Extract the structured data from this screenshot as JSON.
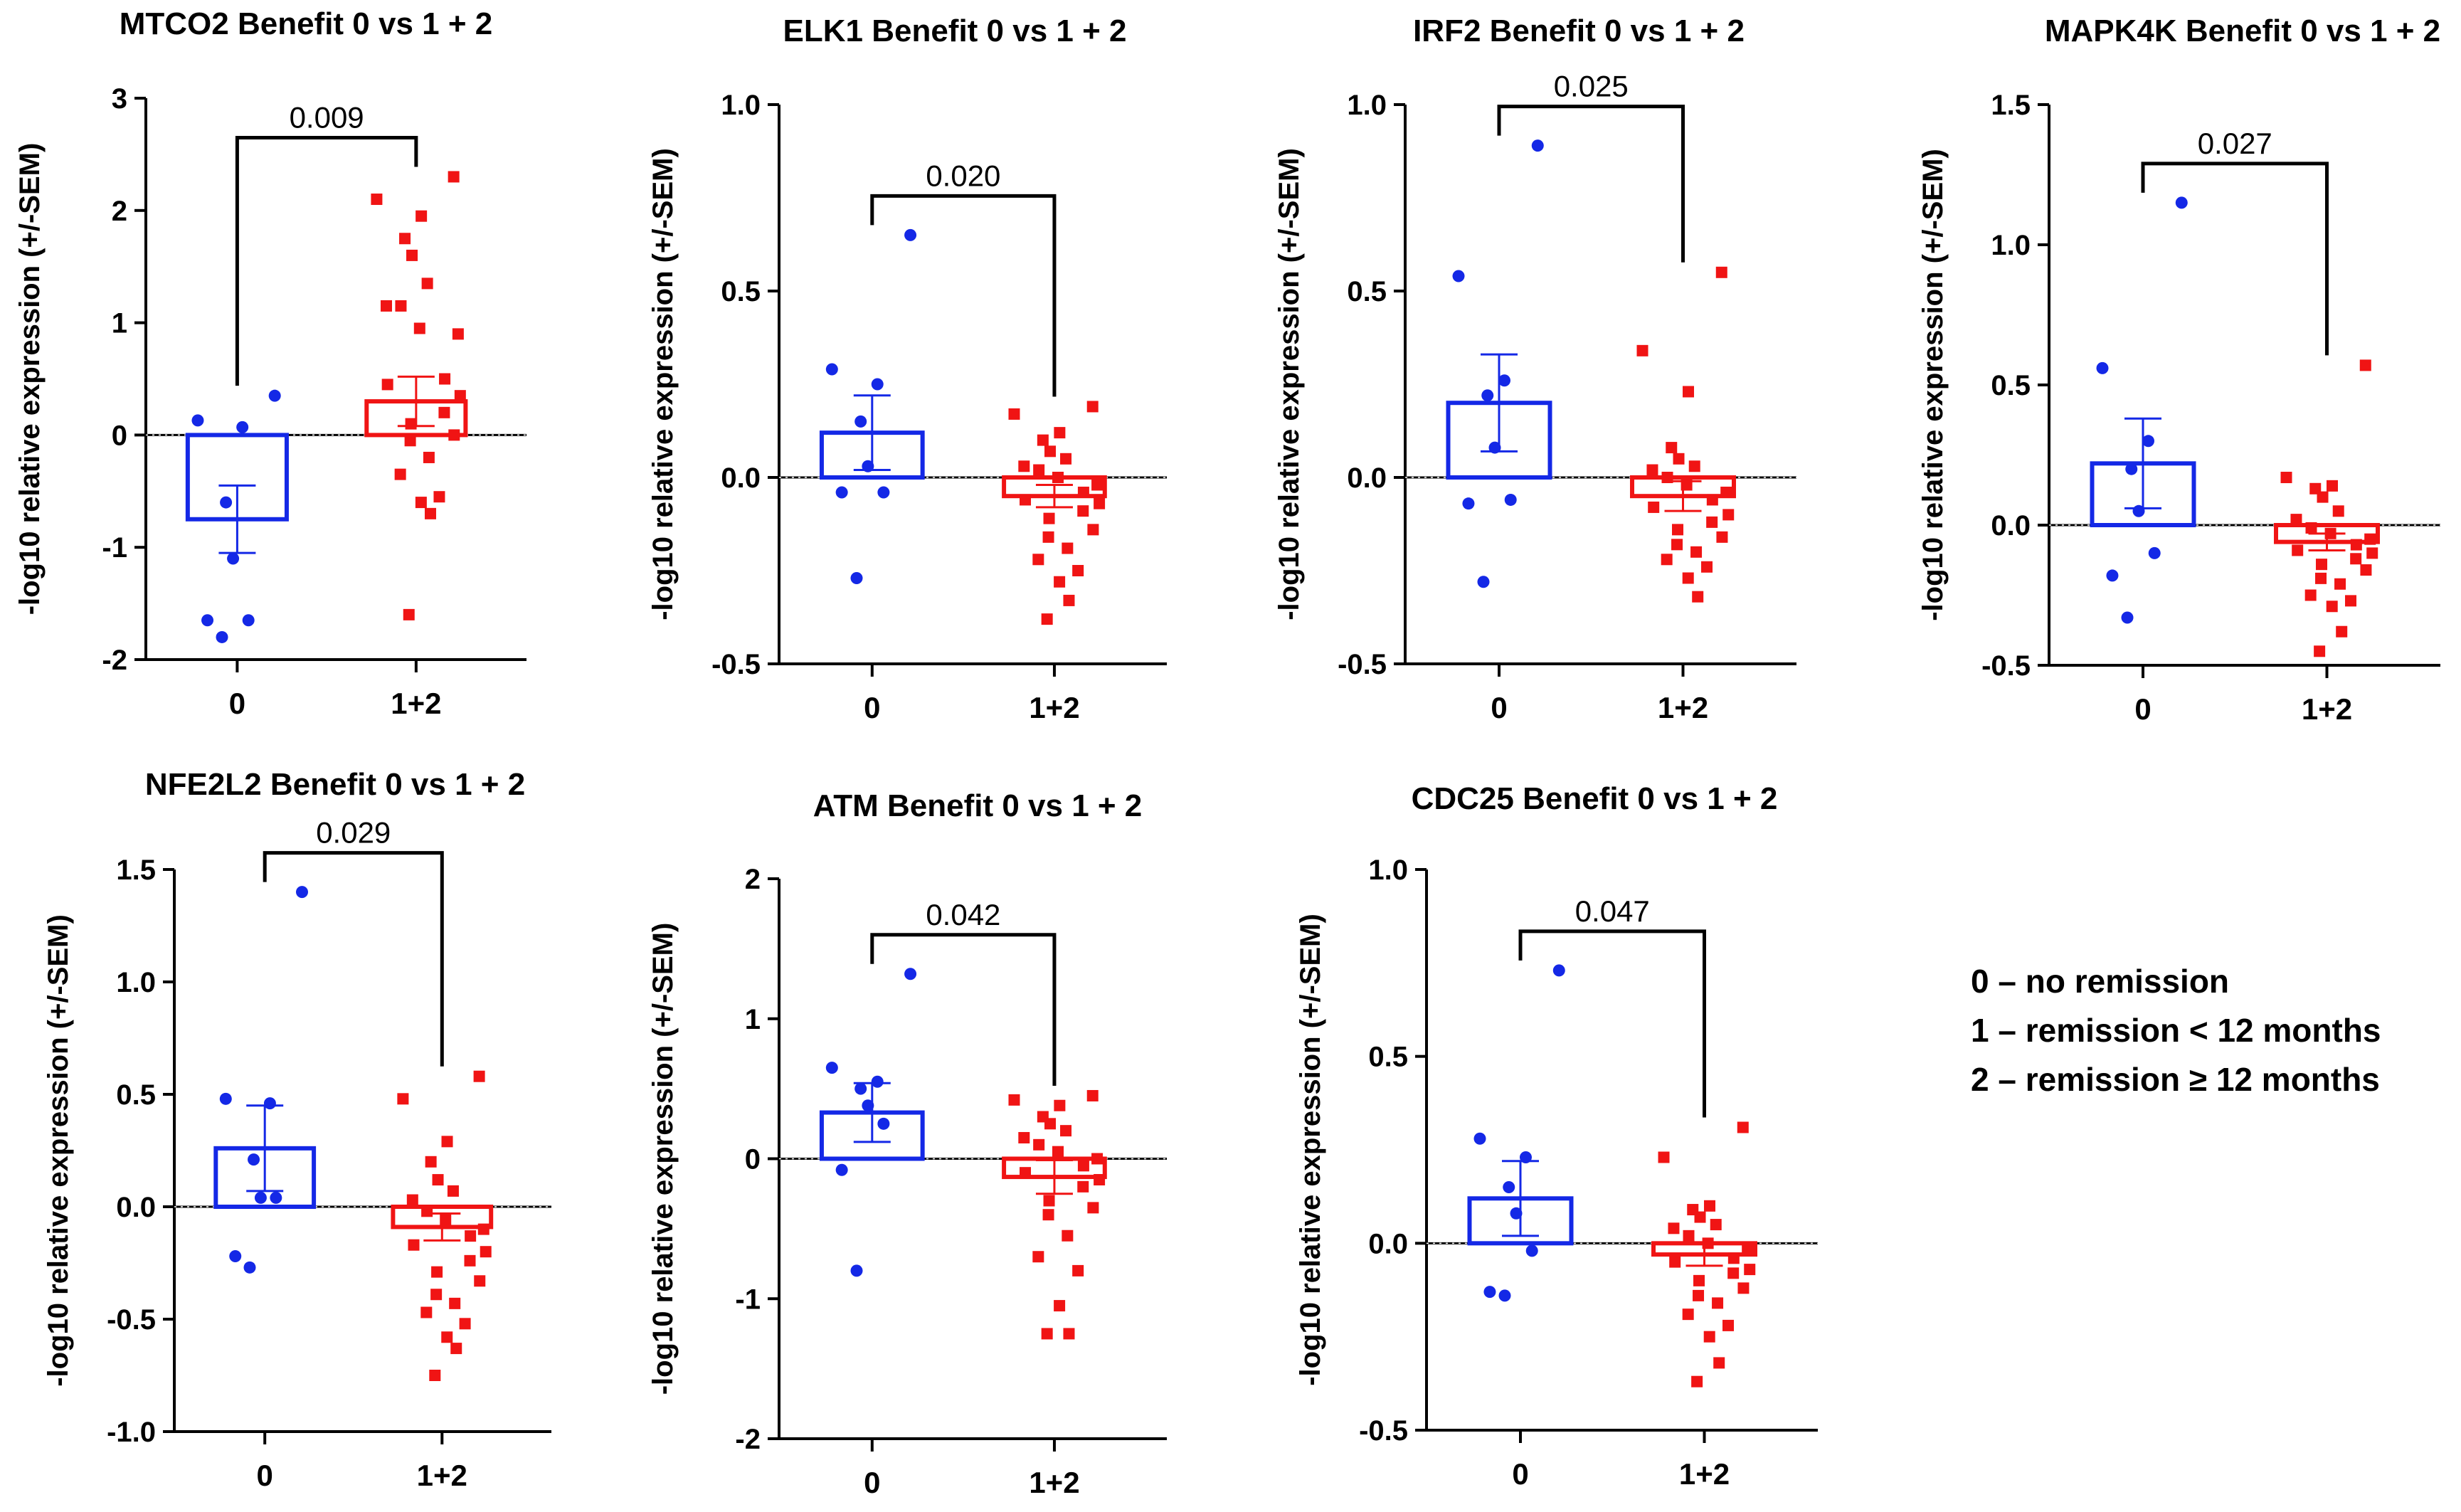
{
  "colors": {
    "group0": "#1428e6",
    "group12": "#f01414",
    "axis": "#000000"
  },
  "legend": {
    "items": [
      "0 – no remission",
      "1 – remission < 12 months",
      "2 – remission ≥ 12 months"
    ]
  },
  "chart_data": [
    {
      "type": "scatter",
      "title": "MTCO2 Benefit 0 vs 1 + 2",
      "ylabel": "-log10 relative expression (+/-SEM)",
      "categories": [
        "0",
        "1+2"
      ],
      "ylim": [
        -2,
        3
      ],
      "yticks": [
        -2,
        -1,
        0,
        1,
        2,
        3
      ],
      "ytick_labels": [
        "-2",
        "-1",
        "0",
        "1",
        "2",
        "3"
      ],
      "p_value": "0.009",
      "series": [
        {
          "name": "0",
          "mean": -0.75,
          "sem": 0.3,
          "points": [
            0.35,
            0.13,
            0.07,
            -0.6,
            -1.1,
            -1.65,
            -1.65,
            -1.8
          ]
        },
        {
          "name": "1+2",
          "mean": 0.3,
          "sem": 0.22,
          "points": [
            2.3,
            2.1,
            1.95,
            1.75,
            1.6,
            1.35,
            1.15,
            1.15,
            0.95,
            0.9,
            0.5,
            0.45,
            0.35,
            0.2,
            0.1,
            0.0,
            -0.05,
            -0.2,
            -0.35,
            -0.55,
            -0.6,
            -0.7,
            -1.6
          ]
        }
      ]
    },
    {
      "type": "scatter",
      "title": "ELK1 Benefit 0 vs 1 + 2",
      "ylabel": "-log10 relative expression (+/-SEM)",
      "categories": [
        "0",
        "1+2"
      ],
      "ylim": [
        -0.5,
        1.0
      ],
      "yticks": [
        -0.5,
        0,
        0.5,
        1.0
      ],
      "ytick_labels": [
        "-0.5",
        "0.0",
        "0.5",
        "1.0"
      ],
      "p_value": "0.020",
      "series": [
        {
          "name": "0",
          "mean": 0.12,
          "sem": 0.1,
          "points": [
            0.65,
            0.29,
            0.25,
            0.15,
            0.03,
            -0.04,
            -0.04,
            -0.27
          ]
        },
        {
          "name": "1+2",
          "mean": -0.05,
          "sem": 0.03,
          "points": [
            0.19,
            0.17,
            0.12,
            0.1,
            0.07,
            0.05,
            0.03,
            0.02,
            0.0,
            -0.02,
            -0.04,
            -0.06,
            -0.07,
            -0.09,
            -0.11,
            -0.14,
            -0.16,
            -0.19,
            -0.22,
            -0.25,
            -0.28,
            -0.33,
            -0.38
          ]
        }
      ]
    },
    {
      "type": "scatter",
      "title": "IRF2 Benefit 0 vs 1 + 2",
      "ylabel": "-log10 relative expression (+/-SEM)",
      "categories": [
        "0",
        "1+2"
      ],
      "ylim": [
        -0.5,
        1.0
      ],
      "yticks": [
        -0.5,
        0,
        0.5,
        1.0
      ],
      "ytick_labels": [
        "-0.5",
        "0.0",
        "0.5",
        "1.0"
      ],
      "p_value": "0.025",
      "series": [
        {
          "name": "0",
          "mean": 0.2,
          "sem": 0.13,
          "points": [
            0.89,
            0.54,
            0.26,
            0.22,
            0.08,
            -0.06,
            -0.07,
            -0.28
          ]
        },
        {
          "name": "1+2",
          "mean": -0.05,
          "sem": 0.04,
          "points": [
            0.55,
            0.34,
            0.23,
            0.08,
            0.05,
            0.03,
            0.02,
            0.0,
            -0.02,
            -0.04,
            -0.06,
            -0.08,
            -0.1,
            -0.12,
            -0.14,
            -0.16,
            -0.18,
            -0.2,
            -0.22,
            -0.24,
            -0.27,
            -0.32
          ]
        }
      ]
    },
    {
      "type": "scatter",
      "title": "MAPK4K Benefit 0 vs 1 + 2",
      "ylabel": "-log10 relative expression (+/-SEM)",
      "categories": [
        "0",
        "1+2"
      ],
      "ylim": [
        -0.5,
        1.5
      ],
      "yticks": [
        -0.5,
        0,
        0.5,
        1.0,
        1.5
      ],
      "ytick_labels": [
        "-0.5",
        "0.0",
        "0.5",
        "1.0",
        "1.5"
      ],
      "p_value": "0.027",
      "series": [
        {
          "name": "0",
          "mean": 0.22,
          "sem": 0.16,
          "points": [
            1.15,
            0.56,
            0.3,
            0.2,
            0.05,
            -0.1,
            -0.18,
            -0.33
          ]
        },
        {
          "name": "1+2",
          "mean": -0.06,
          "sem": 0.03,
          "points": [
            0.57,
            0.17,
            0.14,
            0.13,
            0.1,
            0.05,
            0.02,
            -0.01,
            -0.03,
            -0.05,
            -0.07,
            -0.09,
            -0.1,
            -0.12,
            -0.14,
            -0.16,
            -0.19,
            -0.21,
            -0.25,
            -0.27,
            -0.29,
            -0.38,
            -0.45
          ]
        }
      ]
    },
    {
      "type": "scatter",
      "title": "NFE2L2 Benefit 0 vs 1 + 2",
      "ylabel": "-log10 relative expression (+/-SEM)",
      "categories": [
        "0",
        "1+2"
      ],
      "ylim": [
        -1.0,
        1.5
      ],
      "yticks": [
        -1.0,
        -0.5,
        0,
        0.5,
        1.0,
        1.5
      ],
      "ytick_labels": [
        "-1.0",
        "-0.5",
        "0.0",
        "0.5",
        "1.0",
        "1.5"
      ],
      "p_value": "0.029",
      "series": [
        {
          "name": "0",
          "mean": 0.26,
          "sem": 0.19,
          "points": [
            1.4,
            0.48,
            0.46,
            0.21,
            0.04,
            0.04,
            -0.22,
            -0.27
          ]
        },
        {
          "name": "1+2",
          "mean": -0.09,
          "sem": 0.06,
          "points": [
            0.58,
            0.48,
            0.29,
            0.2,
            0.12,
            0.07,
            0.03,
            -0.02,
            -0.06,
            -0.1,
            -0.13,
            -0.17,
            -0.2,
            -0.24,
            -0.29,
            -0.33,
            -0.39,
            -0.43,
            -0.47,
            -0.52,
            -0.58,
            -0.63,
            -0.75
          ]
        }
      ]
    },
    {
      "type": "scatter",
      "title": "ATM Benefit 0 vs 1 + 2",
      "ylabel": "-log10 relative expression (+/-SEM)",
      "categories": [
        "0",
        "1+2"
      ],
      "ylim": [
        -2,
        2
      ],
      "yticks": [
        -2,
        -1,
        0,
        1,
        2
      ],
      "ytick_labels": [
        "-2",
        "-1",
        "0",
        "1",
        "2"
      ],
      "p_value": "0.042",
      "series": [
        {
          "name": "0",
          "mean": 0.33,
          "sem": 0.21,
          "points": [
            1.32,
            0.65,
            0.55,
            0.5,
            0.38,
            0.25,
            -0.08,
            -0.8
          ]
        },
        {
          "name": "1+2",
          "mean": -0.13,
          "sem": 0.12,
          "points": [
            0.45,
            0.42,
            0.38,
            0.3,
            0.25,
            0.2,
            0.15,
            0.1,
            0.05,
            0.0,
            -0.05,
            -0.1,
            -0.15,
            -0.2,
            -0.3,
            -0.35,
            -0.4,
            -0.55,
            -0.7,
            -0.8,
            -1.05,
            -1.25,
            -1.25
          ]
        }
      ]
    },
    {
      "type": "scatter",
      "title": "CDC25 Benefit 0 vs 1 + 2",
      "ylabel": "-log10 relative expression (+/-SEM)",
      "categories": [
        "0",
        "1+2"
      ],
      "ylim": [
        -0.5,
        1.0
      ],
      "yticks": [
        -0.5,
        0,
        0.5,
        1.0
      ],
      "ytick_labels": [
        "-0.5",
        "0.0",
        "0.5",
        "1.0"
      ],
      "p_value": "0.047",
      "series": [
        {
          "name": "0",
          "mean": 0.12,
          "sem": 0.1,
          "points": [
            0.73,
            0.28,
            0.23,
            0.15,
            0.08,
            -0.02,
            -0.13,
            -0.14
          ]
        },
        {
          "name": "1+2",
          "mean": -0.03,
          "sem": 0.03,
          "points": [
            0.31,
            0.23,
            0.1,
            0.09,
            0.07,
            0.05,
            0.04,
            0.02,
            0.0,
            -0.02,
            -0.04,
            -0.05,
            -0.07,
            -0.08,
            -0.1,
            -0.12,
            -0.14,
            -0.16,
            -0.19,
            -0.22,
            -0.25,
            -0.32,
            -0.37
          ]
        }
      ]
    }
  ]
}
